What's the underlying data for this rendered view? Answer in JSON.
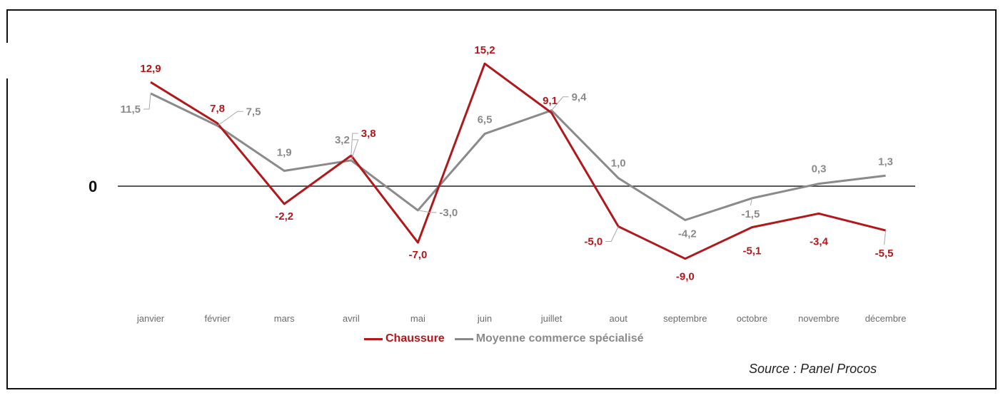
{
  "chart_data": {
    "type": "line",
    "categories": [
      "janvier",
      "février",
      "mars",
      "avril",
      "mai",
      "juin",
      "juillet",
      "aout",
      "septembre",
      "octobre",
      "novembre",
      "décembre"
    ],
    "series": [
      {
        "name": "Chaussure",
        "color": "#b0181c",
        "values": [
          12.9,
          7.8,
          -2.2,
          3.8,
          -7.0,
          15.2,
          9.1,
          -5.0,
          -9.0,
          -5.1,
          -3.4,
          -5.5
        ],
        "labels": [
          "12,9",
          "7,8",
          "-2,2",
          "3,8",
          "-7,0",
          "15,2",
          "9,1",
          "-5,0",
          "-9,0",
          "-5,1",
          "-3,4",
          "-5,5"
        ]
      },
      {
        "name": "Moyenne commerce spécialisé",
        "color": "#8a8a8a",
        "values": [
          11.5,
          7.5,
          1.9,
          3.2,
          -3.0,
          6.5,
          9.4,
          1.0,
          -4.2,
          -1.5,
          0.3,
          1.3
        ],
        "labels": [
          "11,5",
          "7,5",
          "1,9",
          "3,2",
          "-3,0",
          "6,5",
          "9,4",
          "1,0",
          "-4,2",
          "-1,5",
          "0,3",
          "1,3"
        ]
      }
    ],
    "zero_label": "0",
    "grid": false,
    "legend_position": "bottom"
  },
  "source": "Source : Panel Procos"
}
